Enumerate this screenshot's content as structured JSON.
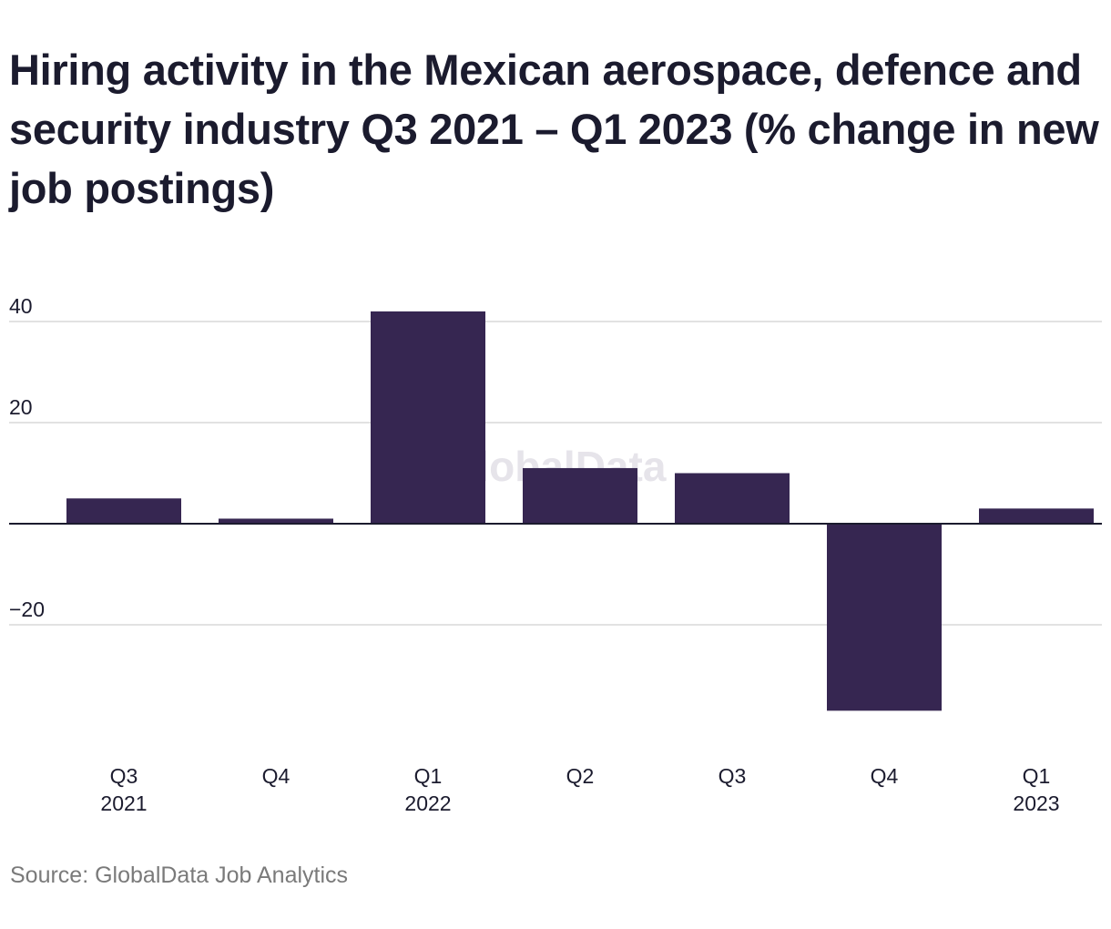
{
  "title": "Hiring activity in the Mexican aerospace, defence and security industry Q3 2021 – Q1 2023 (% change in new job postings)",
  "source": "Source: GlobalData Job Analytics",
  "watermark": "GlobalData",
  "colors": {
    "bar": "#362651",
    "grid": "#d9d9d9",
    "zero_line": "#1b1b2e",
    "text": "#1b1b2e",
    "source_text": "#7a7a7a",
    "watermark": "#e6e4ea"
  },
  "chart_data": {
    "type": "bar",
    "title": "Hiring activity in the Mexican aerospace, defence and security industry Q3 2021 – Q1 2023 (% change in new job postings)",
    "categories": [
      "Q3 2021",
      "Q4 2021",
      "Q1 2022",
      "Q2 2022",
      "Q3 2022",
      "Q4 2022",
      "Q1 2023"
    ],
    "tick_labels": [
      [
        "Q3",
        "2021"
      ],
      [
        "Q4",
        ""
      ],
      [
        "Q1",
        "2022"
      ],
      [
        "Q2",
        ""
      ],
      [
        "Q3",
        ""
      ],
      [
        "Q4",
        ""
      ],
      [
        "Q1",
        "2023"
      ]
    ],
    "values": [
      5.0,
      1.0,
      42.0,
      11.0,
      10.0,
      -37.0,
      3.0
    ],
    "xlabel": "",
    "ylabel": "",
    "ylim": [
      -40,
      40
    ],
    "yticks": [
      40,
      20,
      -20
    ],
    "ytick_labels": [
      "40",
      "20",
      "−20"
    ],
    "grid": true,
    "legend": "none"
  }
}
